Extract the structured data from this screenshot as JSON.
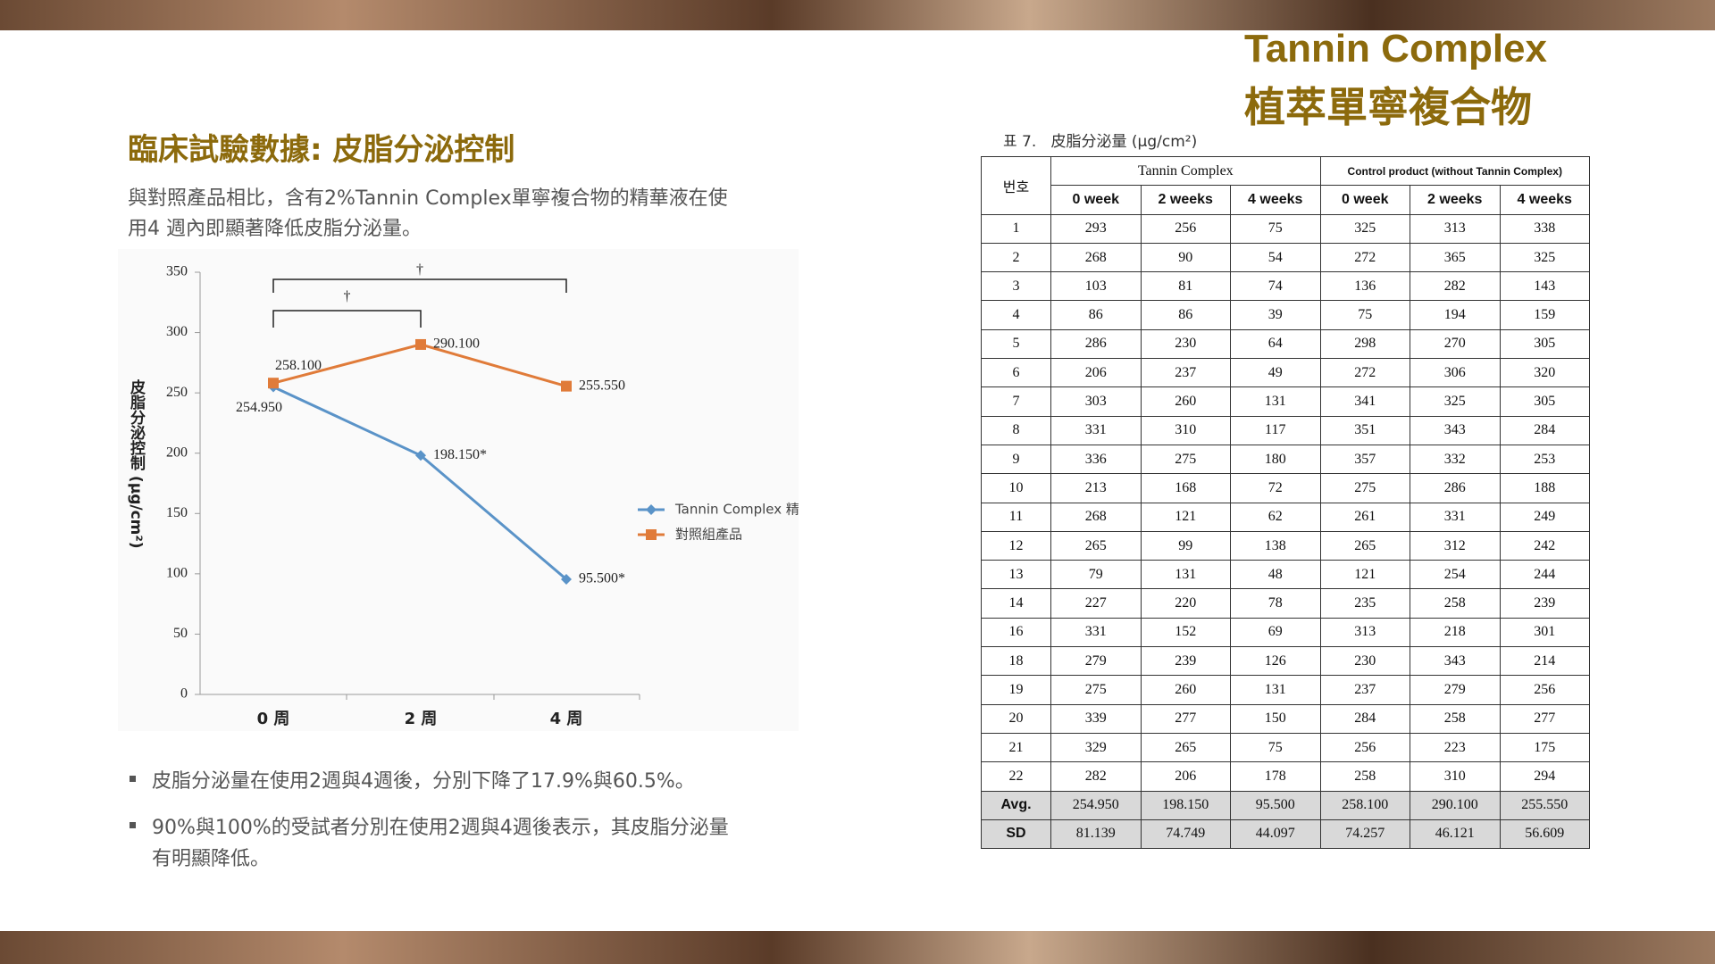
{
  "header": {
    "title_en": "Tannin Complex",
    "title_zh": "植萃單寧複合物"
  },
  "section": {
    "heading": "臨床試驗數據: 皮脂分泌控制",
    "paragraph": [
      "與對照產品相比，含有2%Tannin Complex單寧複合物的精華液在使",
      "用4 週內即顯著降低皮脂分泌量。"
    ]
  },
  "chart_data": {
    "type": "line",
    "categories": [
      "0 周",
      "2 周",
      "4 周"
    ],
    "ylabel": "皮脂分泌控制 (μg/cm²)",
    "ylim": [
      0,
      350
    ],
    "yticks": [
      0,
      50,
      100,
      150,
      200,
      250,
      300,
      350
    ],
    "significance": [
      "†",
      "†"
    ],
    "legend": "right",
    "series": [
      {
        "name": "Tannin Complex 精華",
        "color": "#5a93c8",
        "values": [
          254.95,
          198.15,
          95.5
        ],
        "value_labels": [
          "254.950",
          "198.150*",
          "95.500*"
        ]
      },
      {
        "name": "對照組產品",
        "color": "#e07b39",
        "values": [
          258.1,
          290.1,
          255.55
        ],
        "value_labels": [
          "258.100",
          "290.100",
          "255.550"
        ]
      }
    ]
  },
  "bullets": [
    [
      "皮脂分泌量在使用2週與4週後，分別下降了17.9%與60.5%。"
    ],
    [
      "90%與100%的受試者分別在使用2週與4週後表示，其皮脂分泌量",
      "有明顯降低。"
    ]
  ],
  "table": {
    "caption_number": "표 7.",
    "caption": "皮脂分泌量 (μg/cm²)",
    "header_id": "번호",
    "group_1": "Tannin Complex",
    "group_2": "Control product (without Tannin Complex)",
    "columns": [
      "0 week",
      "2 weeks",
      "4 weeks",
      "0 week",
      "2 weeks",
      "4 weeks"
    ],
    "rows": [
      [
        1,
        293,
        256,
        75,
        325,
        313,
        338
      ],
      [
        2,
        268,
        90,
        54,
        272,
        365,
        325
      ],
      [
        3,
        103,
        81,
        74,
        136,
        282,
        143
      ],
      [
        4,
        86,
        86,
        39,
        75,
        194,
        159
      ],
      [
        5,
        286,
        230,
        64,
        298,
        270,
        305
      ],
      [
        6,
        206,
        237,
        49,
        272,
        306,
        320
      ],
      [
        7,
        303,
        260,
        131,
        341,
        325,
        305
      ],
      [
        8,
        331,
        310,
        117,
        351,
        343,
        284
      ],
      [
        9,
        336,
        275,
        180,
        357,
        332,
        253
      ],
      [
        10,
        213,
        168,
        72,
        275,
        286,
        188
      ],
      [
        11,
        268,
        121,
        62,
        261,
        331,
        249
      ],
      [
        12,
        265,
        99,
        138,
        265,
        312,
        242
      ],
      [
        13,
        79,
        131,
        48,
        121,
        254,
        244
      ],
      [
        14,
        227,
        220,
        78,
        235,
        258,
        239
      ],
      [
        16,
        331,
        152,
        69,
        313,
        218,
        301
      ],
      [
        18,
        279,
        239,
        126,
        230,
        343,
        214
      ],
      [
        19,
        275,
        260,
        131,
        237,
        279,
        256
      ],
      [
        20,
        339,
        277,
        150,
        284,
        258,
        277
      ],
      [
        21,
        329,
        265,
        75,
        256,
        223,
        175
      ],
      [
        22,
        282,
        206,
        178,
        258,
        310,
        294
      ],
      [
        "Avg.",
        "254.950",
        "198.150",
        "95.500",
        "258.100",
        "290.100",
        "255.550"
      ],
      [
        "SD",
        "81.139",
        "74.749",
        "44.097",
        "74.257",
        "46.121",
        "56.609"
      ]
    ]
  }
}
